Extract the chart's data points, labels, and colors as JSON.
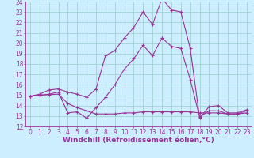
{
  "xlabel": "Windchill (Refroidissement éolien,°C)",
  "xlim": [
    -0.5,
    23.5
  ],
  "ylim": [
    12,
    24
  ],
  "xticks": [
    0,
    1,
    2,
    3,
    4,
    5,
    6,
    7,
    8,
    9,
    10,
    11,
    12,
    13,
    14,
    15,
    16,
    17,
    18,
    19,
    20,
    21,
    22,
    23
  ],
  "yticks": [
    12,
    13,
    14,
    15,
    16,
    17,
    18,
    19,
    20,
    21,
    22,
    23,
    24
  ],
  "bg_color": "#cceeff",
  "line_color": "#993399",
  "grid_color": "#99cccc",
  "line1_x": [
    0,
    1,
    2,
    3,
    4,
    5,
    6,
    7,
    8,
    9,
    10,
    11,
    12,
    13,
    14,
    15,
    16,
    17,
    18,
    19,
    20,
    21,
    22,
    23
  ],
  "line1_y": [
    14.9,
    15.1,
    15.5,
    15.6,
    15.3,
    15.1,
    14.8,
    15.6,
    18.8,
    19.3,
    20.5,
    21.5,
    23.0,
    21.8,
    24.3,
    23.2,
    23.0,
    19.5,
    12.8,
    13.9,
    14.0,
    13.3,
    13.3,
    13.6
  ],
  "line2_x": [
    0,
    1,
    2,
    3,
    4,
    5,
    6,
    7,
    8,
    9,
    10,
    11,
    12,
    13,
    14,
    15,
    16,
    17,
    18,
    19,
    20,
    21,
    22,
    23
  ],
  "line2_y": [
    14.9,
    15.0,
    15.1,
    15.3,
    13.3,
    13.4,
    12.8,
    13.8,
    14.8,
    16.0,
    17.5,
    18.5,
    19.8,
    18.8,
    20.5,
    19.7,
    19.5,
    16.5,
    12.9,
    13.5,
    13.5,
    13.2,
    13.2,
    13.5
  ],
  "line3_x": [
    0,
    1,
    2,
    3,
    4,
    5,
    6,
    7,
    8,
    9,
    10,
    11,
    12,
    13,
    14,
    15,
    16,
    17,
    18,
    19,
    20,
    21,
    22,
    23
  ],
  "line3_y": [
    14.9,
    15.0,
    15.05,
    15.1,
    14.2,
    13.8,
    13.5,
    13.2,
    13.2,
    13.2,
    13.3,
    13.3,
    13.4,
    13.4,
    13.4,
    13.4,
    13.4,
    13.4,
    13.3,
    13.3,
    13.3,
    13.2,
    13.2,
    13.3
  ],
  "tick_fontsize": 5.5,
  "label_fontsize": 6.5,
  "linewidth": 0.8,
  "markersize": 2.5
}
